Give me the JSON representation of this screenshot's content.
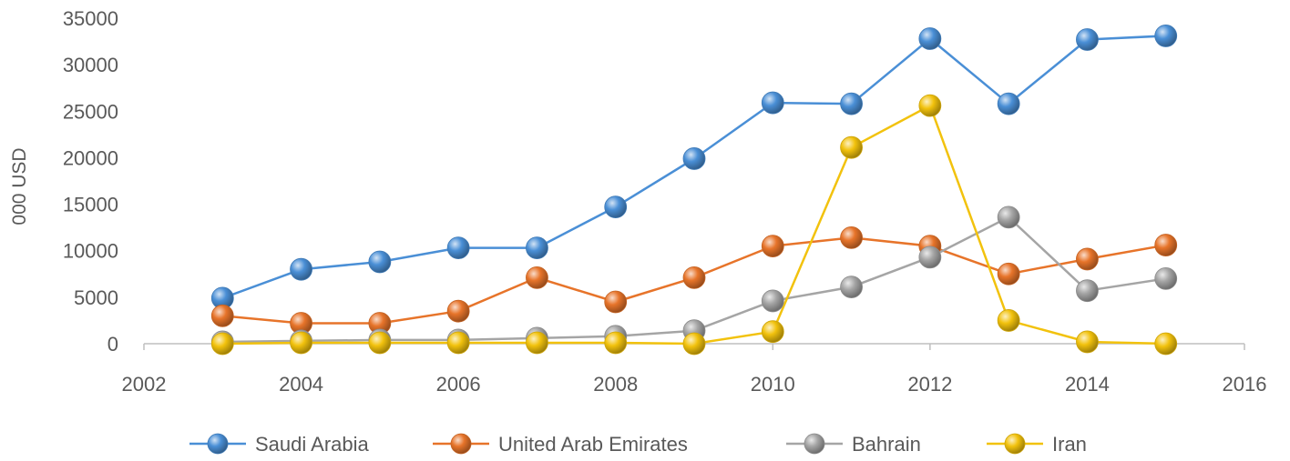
{
  "chart_data": {
    "type": "scatter",
    "ylabel": "000 USD",
    "xlim": [
      2002,
      2016
    ],
    "ylim": [
      0,
      35000
    ],
    "x_ticks": [
      2002,
      2004,
      2006,
      2008,
      2010,
      2012,
      2014,
      2016
    ],
    "y_ticks": [
      0,
      5000,
      10000,
      15000,
      20000,
      25000,
      30000,
      35000
    ],
    "x_tick_labels": [
      "2002",
      "2004",
      "2006",
      "2008",
      "2010",
      "2012",
      "2014",
      "2016"
    ],
    "y_tick_labels": [
      "0",
      "5000",
      "10000",
      "15000",
      "20000",
      "25000",
      "30000",
      "35000"
    ],
    "grid": false,
    "legend_position": "bottom",
    "x": [
      2003,
      2004,
      2005,
      2006,
      2007,
      2008,
      2009,
      2010,
      2011,
      2012,
      2013,
      2014,
      2015
    ],
    "series": [
      {
        "name": "Saudi Arabia",
        "color": "#4a8fd6",
        "values": [
          4900,
          8000,
          8800,
          10300,
          10300,
          14700,
          19900,
          25900,
          25800,
          32800,
          25800,
          32700,
          33100
        ]
      },
      {
        "name": "United Arab Emirates",
        "color": "#e7742a",
        "values": [
          3000,
          2200,
          2200,
          3500,
          7100,
          4500,
          7100,
          10500,
          11400,
          10500,
          7500,
          9100,
          10600
        ]
      },
      {
        "name": "Bahrain",
        "color": "#a5a5a5",
        "values": [
          200,
          300,
          400,
          400,
          600,
          800,
          1400,
          4600,
          6100,
          9300,
          13600,
          5700,
          7000
        ]
      },
      {
        "name": "Iran",
        "color": "#f2c20d",
        "values": [
          0,
          100,
          100,
          100,
          100,
          100,
          0,
          1300,
          21100,
          25600,
          2500,
          200,
          0
        ]
      }
    ]
  }
}
